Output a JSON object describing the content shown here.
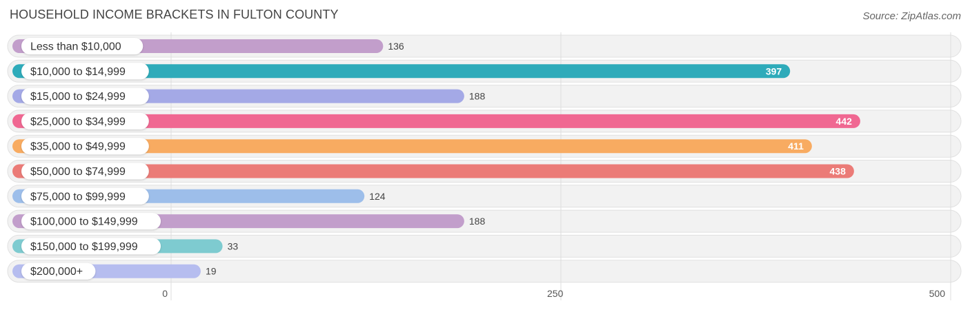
{
  "header": {
    "title": "HOUSEHOLD INCOME BRACKETS IN FULTON COUNTY",
    "source": "Source: ZipAtlas.com"
  },
  "chart_data": {
    "type": "bar",
    "orientation": "horizontal",
    "title": "HOUSEHOLD INCOME BRACKETS IN FULTON COUNTY",
    "categories": [
      "Less than $10,000",
      "$10,000 to $14,999",
      "$15,000 to $24,999",
      "$25,000 to $34,999",
      "$35,000 to $49,999",
      "$50,000 to $74,999",
      "$75,000 to $99,999",
      "$100,000 to $149,999",
      "$150,000 to $199,999",
      "$200,000+"
    ],
    "values": [
      136,
      397,
      188,
      442,
      411,
      438,
      124,
      188,
      33,
      19
    ],
    "colors": [
      "#c29ecb",
      "#2eabba",
      "#a4a9e6",
      "#f06892",
      "#f8ab61",
      "#eb7b77",
      "#9dbeea",
      "#c29ecb",
      "#7ecbd0",
      "#b6bdef"
    ],
    "xlim": [
      0,
      500
    ],
    "xticks": [
      0,
      250,
      500
    ],
    "xtick_labels": [
      "0",
      "250",
      "500"
    ],
    "grid": true
  }
}
